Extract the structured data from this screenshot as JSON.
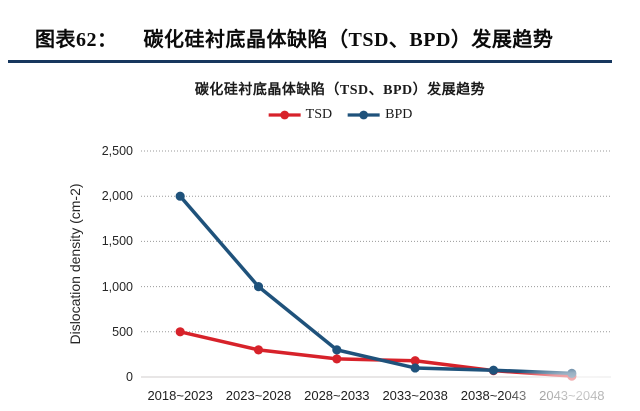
{
  "figure": {
    "caption_label": "图表62：",
    "caption_title": "碳化硅衬底晶体缺陷（TSD、BPD）发展趋势",
    "underline_color": "#17375e"
  },
  "chart_data": {
    "type": "line",
    "title": "碳化硅衬底晶体缺陷（TSD、BPD）发展趋势",
    "categories": [
      "2018~2023",
      "2023~2028",
      "2028~2033",
      "2033~2038",
      "2038~2043",
      "2043~2048"
    ],
    "series": [
      {
        "name": "TSD",
        "color": "#d7222a",
        "values": [
          500,
          300,
          200,
          180,
          70,
          10
        ]
      },
      {
        "name": "BPD",
        "color": "#1f527b",
        "values": [
          2000,
          1000,
          300,
          100,
          75,
          40
        ]
      }
    ],
    "ylabel": "Dislocation density (cm-2)",
    "ylim": [
      0,
      2500
    ],
    "ytick_step": 500,
    "yticks_labels": [
      "0",
      "500",
      "1,000",
      "1,500",
      "2,000",
      "2,500"
    ],
    "grid": "horizontal-dotted",
    "legend_position": "top-center",
    "gridline_color": "#9a9a9a",
    "baseline_color": "#d0cece"
  }
}
